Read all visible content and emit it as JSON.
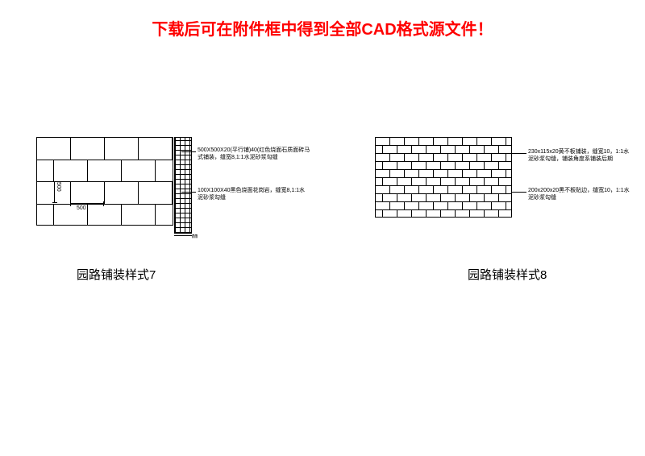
{
  "header": {
    "text": "下载后可在附件框中得到全部CAD格式源文件！",
    "color": "#ff0000"
  },
  "panel7": {
    "caption": "园路铺装样式7",
    "dim_h_value": "500",
    "dim_v_value": "500",
    "dim_bottom_value": "㎜",
    "leader1_text": "500X500X20(平行铺)40(红色烧面石质面砖马式铺装，缝宽8,1:1水泥砂浆勾缝",
    "leader2_text": "100X100X40黑色烧面花岗岩，缝宽8,1:1水泥砂浆勾缝",
    "tile_rows": 4,
    "tile_cols": 5,
    "colors": {
      "line": "#000000",
      "bg": "#ffffff"
    }
  },
  "panel8": {
    "caption": "园路铺装样式8",
    "leader1_text": "230x115x20黄不板铺装，缝宽10，1:1水泥砂浆勾缝，铺装角度系铺装后期",
    "leader2_text": "200x200x20黑不板贴边，缝宽10，1:1水泥砂浆勾缝",
    "brick_rows": 10,
    "brick_cols": 10,
    "colors": {
      "line": "#000000",
      "bg": "#ffffff"
    }
  },
  "styling": {
    "header_fontsize": 20,
    "caption_fontsize": 15,
    "label_fontsize": 7,
    "background": "#ffffff"
  }
}
